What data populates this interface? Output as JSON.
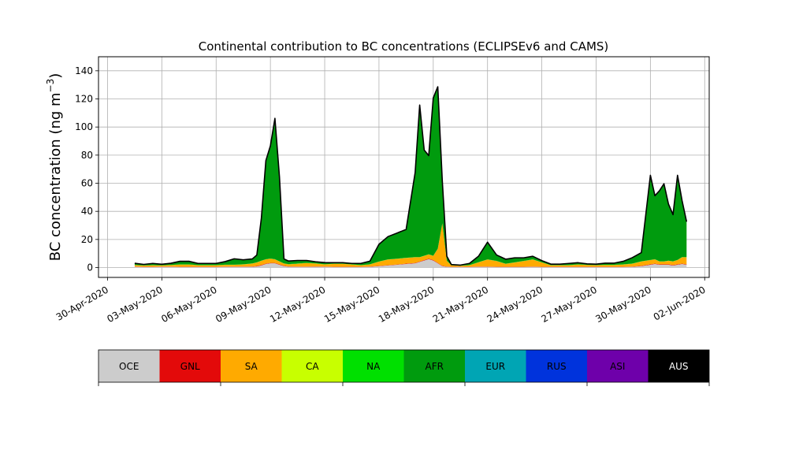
{
  "chart_data": {
    "type": "area",
    "title": "Continental contribution to BC concentrations (ECLIPSEv6 and CAMS)",
    "ylabel": "BC concentration (ng m",
    "ylabel_exp": "−3",
    "ylabel_end": ")",
    "xlabel": "",
    "x_start": "2020-04-30",
    "x_end": "2020-06-02",
    "xlim": [
      "2020-04-29T12:00",
      "2020-06-02T06:00"
    ],
    "ylim": [
      -7,
      150
    ],
    "x_ticks": [
      "30-Apr-2020",
      "03-May-2020",
      "06-May-2020",
      "09-May-2020",
      "12-May-2020",
      "15-May-2020",
      "18-May-2020",
      "21-May-2020",
      "24-May-2020",
      "27-May-2020",
      "30-May-2020",
      "02-Jun-2020"
    ],
    "x_tick_dates": [
      "2020-04-30",
      "2020-05-03",
      "2020-05-06",
      "2020-05-09",
      "2020-05-12",
      "2020-05-15",
      "2020-05-18",
      "2020-05-21",
      "2020-05-24",
      "2020-05-27",
      "2020-05-30",
      "2020-06-02"
    ],
    "y_ticks": [
      0,
      20,
      40,
      60,
      80,
      100,
      120,
      140
    ],
    "grid": true,
    "x": [
      "2020-05-01T12:00",
      "2020-05-02T00:00",
      "2020-05-02T12:00",
      "2020-05-03T00:00",
      "2020-05-03T12:00",
      "2020-05-04T00:00",
      "2020-05-04T12:00",
      "2020-05-05T00:00",
      "2020-05-05T12:00",
      "2020-05-06T00:00",
      "2020-05-06T12:00",
      "2020-05-07T00:00",
      "2020-05-07T12:00",
      "2020-05-08T00:00",
      "2020-05-08T06:00",
      "2020-05-08T12:00",
      "2020-05-08T18:00",
      "2020-05-09T00:00",
      "2020-05-09T06:00",
      "2020-05-09T12:00",
      "2020-05-09T18:00",
      "2020-05-10T00:00",
      "2020-05-10T12:00",
      "2020-05-11T00:00",
      "2020-05-11T12:00",
      "2020-05-12T00:00",
      "2020-05-12T12:00",
      "2020-05-13T00:00",
      "2020-05-13T12:00",
      "2020-05-14T00:00",
      "2020-05-14T12:00",
      "2020-05-15T00:00",
      "2020-05-15T12:00",
      "2020-05-16T00:00",
      "2020-05-16T12:00",
      "2020-05-17T00:00",
      "2020-05-17T06:00",
      "2020-05-17T12:00",
      "2020-05-17T18:00",
      "2020-05-18T00:00",
      "2020-05-18T06:00",
      "2020-05-18T12:00",
      "2020-05-18T18:00",
      "2020-05-19T00:00",
      "2020-05-19T12:00",
      "2020-05-20T00:00",
      "2020-05-20T12:00",
      "2020-05-21T00:00",
      "2020-05-21T12:00",
      "2020-05-22T00:00",
      "2020-05-22T12:00",
      "2020-05-23T00:00",
      "2020-05-23T12:00",
      "2020-05-24T00:00",
      "2020-05-24T12:00",
      "2020-05-25T00:00",
      "2020-05-25T12:00",
      "2020-05-26T00:00",
      "2020-05-26T12:00",
      "2020-05-27T00:00",
      "2020-05-27T12:00",
      "2020-05-28T00:00",
      "2020-05-28T12:00",
      "2020-05-29T00:00",
      "2020-05-29T12:00",
      "2020-05-30T00:00",
      "2020-05-30T06:00",
      "2020-05-30T12:00",
      "2020-05-30T18:00",
      "2020-05-31T00:00",
      "2020-05-31T06:00",
      "2020-05-31T12:00",
      "2020-05-31T18:00",
      "2020-06-01T00:00"
    ],
    "series": [
      {
        "name": "OCE",
        "color": "#cccccc",
        "values": [
          0.5,
          0.4,
          0.4,
          0.5,
          0.5,
          0.4,
          0.4,
          0.4,
          0.4,
          0.4,
          0.5,
          0.5,
          0.5,
          0.6,
          0.8,
          1.5,
          2.5,
          3,
          3,
          2,
          1,
          0.6,
          0.5,
          0.5,
          0.6,
          0.5,
          0.4,
          0.4,
          0.4,
          0.4,
          0.5,
          1,
          1.5,
          2,
          2.5,
          3,
          4,
          5,
          6,
          5,
          3,
          1,
          0.5,
          0.4,
          0.4,
          0.4,
          0.5,
          0.5,
          0.4,
          0.4,
          0.4,
          0.4,
          0.5,
          0.4,
          0.4,
          0.4,
          0.4,
          0.4,
          0.4,
          0.4,
          0.4,
          0.4,
          0.4,
          0.5,
          1,
          2,
          2.5,
          2,
          2,
          2,
          1.5,
          2,
          2.5,
          2
        ]
      },
      {
        "name": "GNL",
        "color": "#e30a0a",
        "values": [
          0.2,
          0.2,
          0.2,
          0.2,
          0.2,
          0.2,
          0.2,
          0.2,
          0.2,
          0.2,
          0.2,
          0.2,
          0.2,
          0.2,
          0.3,
          0.3,
          0.3,
          0.3,
          0.3,
          0.3,
          0.3,
          0.2,
          0.2,
          0.2,
          0.2,
          0.2,
          0.2,
          0.2,
          0.2,
          0.2,
          0.2,
          0.2,
          0.2,
          0.2,
          0.3,
          0.3,
          0.3,
          0.3,
          0.3,
          0.3,
          0.3,
          0.3,
          0.2,
          0.2,
          0.2,
          0.2,
          0.2,
          0.2,
          0.2,
          0.2,
          0.2,
          0.2,
          0.2,
          0.2,
          0.2,
          0.2,
          0.2,
          0.2,
          0.2,
          0.2,
          0.2,
          0.2,
          0.2,
          0.2,
          0.3,
          0.3,
          0.3,
          0.3,
          0.3,
          0.3,
          0.3,
          0.3,
          0.3,
          0.3
        ]
      },
      {
        "name": "SA",
        "color": "#ffaa00",
        "values": [
          1,
          0.8,
          1,
          0.8,
          1,
          1.5,
          1.5,
          1,
          1,
          1,
          1.2,
          1.2,
          1.5,
          2,
          2.5,
          3,
          3,
          3,
          2.5,
          2,
          1.5,
          1.5,
          2,
          2.5,
          2,
          1.5,
          2,
          2,
          1.5,
          1,
          1.5,
          3,
          4,
          4,
          4,
          4,
          3,
          3,
          3,
          3,
          10,
          30,
          4,
          1,
          0.6,
          1,
          3,
          5,
          4,
          2,
          3,
          4,
          5,
          3,
          1,
          1,
          1,
          1.5,
          1.2,
          1,
          1.2,
          1.2,
          1.5,
          2,
          3,
          3,
          3,
          2,
          2,
          2.5,
          2.5,
          3,
          4.5,
          5
        ]
      },
      {
        "name": "CA",
        "color": "#c8ff00",
        "values": [
          0.05,
          0.05,
          0.05,
          0.05,
          0.05,
          0.05,
          0.05,
          0.05,
          0.05,
          0.05,
          0.05,
          0.05,
          0.05,
          0.05,
          0.05,
          0.05,
          0.05,
          0.05,
          0.05,
          0.05,
          0.05,
          0.05,
          0.05,
          0.05,
          0.05,
          0.05,
          0.05,
          0.05,
          0.05,
          0.05,
          0.05,
          0.05,
          0.05,
          0.05,
          0.05,
          0.05,
          0.05,
          0.05,
          0.05,
          0.05,
          0.05,
          0.05,
          0.05,
          0.05,
          0.05,
          0.05,
          0.05,
          0.05,
          0.05,
          0.05,
          0.05,
          0.05,
          0.05,
          0.05,
          0.05,
          0.05,
          0.05,
          0.05,
          0.05,
          0.05,
          0.05,
          0.05,
          0.05,
          0.05,
          0.05,
          0.05,
          0.05,
          0.05,
          0.05,
          0.05,
          0.05,
          0.05,
          0.05,
          0.05
        ]
      },
      {
        "name": "NA",
        "color": "#00e000",
        "values": [
          0.1,
          0.1,
          0.1,
          0.1,
          0.1,
          0.1,
          0.1,
          0.1,
          0.1,
          0.1,
          0.1,
          0.1,
          0.1,
          0.1,
          0.1,
          0.1,
          0.1,
          0.1,
          0.1,
          0.1,
          0.1,
          0.1,
          0.1,
          0.1,
          0.1,
          0.1,
          0.1,
          0.1,
          0.1,
          0.1,
          0.1,
          0.1,
          0.1,
          0.1,
          0.1,
          0.1,
          0.1,
          0.1,
          0.1,
          0.1,
          0.1,
          0.1,
          0.1,
          0.1,
          0.1,
          0.1,
          0.1,
          0.1,
          0.1,
          0.1,
          0.1,
          0.1,
          0.1,
          0.1,
          0.1,
          0.1,
          0.1,
          0.1,
          0.1,
          0.1,
          0.1,
          0.1,
          0.1,
          0.1,
          0.1,
          0.1,
          0.1,
          0.1,
          0.1,
          0.1,
          0.1,
          0.1,
          0.1,
          0.1
        ]
      },
      {
        "name": "AFR",
        "color": "#009b0e",
        "values": [
          1,
          0.5,
          1,
          0.5,
          1,
          2,
          2,
          1,
          1,
          1,
          2,
          4,
          3,
          3,
          5,
          30,
          70,
          80,
          100,
          60,
          3,
          2,
          2,
          1.5,
          1,
          1,
          0.5,
          0.5,
          0.5,
          1,
          2,
          12,
          16,
          18,
          20,
          60,
          108,
          75,
          70,
          112,
          115,
          30,
          3,
          0.2,
          0.2,
          1,
          4,
          12,
          4,
          3,
          3,
          2,
          2,
          1,
          0.5,
          0.5,
          1,
          1,
          0.5,
          0.5,
          1,
          1,
          2,
          4,
          6,
          60,
          45,
          50,
          55,
          40,
          33,
          60,
          40,
          25
        ]
      },
      {
        "name": "EUR",
        "color": "#00a5b4",
        "values": [
          0.05,
          0.05,
          0.05,
          0.05,
          0.05,
          0.05,
          0.05,
          0.05,
          0.05,
          0.05,
          0.05,
          0.05,
          0.05,
          0.05,
          0.05,
          0.05,
          0.05,
          0.05,
          0.05,
          0.05,
          0.05,
          0.05,
          0.05,
          0.05,
          0.05,
          0.05,
          0.05,
          0.05,
          0.05,
          0.05,
          0.05,
          0.05,
          0.05,
          0.05,
          0.05,
          0.05,
          0.05,
          0.05,
          0.05,
          0.05,
          0.05,
          0.05,
          0.05,
          0.05,
          0.05,
          0.05,
          0.05,
          0.05,
          0.05,
          0.05,
          0.05,
          0.05,
          0.05,
          0.05,
          0.05,
          0.05,
          0.05,
          0.05,
          0.05,
          0.05,
          0.05,
          0.05,
          0.05,
          0.05,
          0.05,
          0.05,
          0.05,
          0.05,
          0.05,
          0.05,
          0.05,
          0.05,
          0.05,
          0.05
        ]
      },
      {
        "name": "RUS",
        "color": "#0033dc",
        "values": [
          0.05,
          0.05,
          0.05,
          0.05,
          0.05,
          0.05,
          0.05,
          0.05,
          0.05,
          0.05,
          0.05,
          0.05,
          0.05,
          0.05,
          0.05,
          0.05,
          0.05,
          0.05,
          0.05,
          0.05,
          0.05,
          0.05,
          0.05,
          0.05,
          0.05,
          0.05,
          0.05,
          0.05,
          0.05,
          0.05,
          0.05,
          0.05,
          0.05,
          0.05,
          0.05,
          0.05,
          0.05,
          0.05,
          0.05,
          0.05,
          0.05,
          0.05,
          0.05,
          0.05,
          0.05,
          0.05,
          0.05,
          0.05,
          0.05,
          0.05,
          0.05,
          0.05,
          0.05,
          0.05,
          0.05,
          0.05,
          0.05,
          0.05,
          0.05,
          0.05,
          0.05,
          0.05,
          0.05,
          0.05,
          0.05,
          0.05,
          0.05,
          0.05,
          0.05,
          0.05,
          0.05,
          0.05,
          0.05,
          0.05
        ]
      },
      {
        "name": "ASI",
        "color": "#6e00aa",
        "values": [
          0.05,
          0.05,
          0.05,
          0.05,
          0.05,
          0.05,
          0.05,
          0.05,
          0.05,
          0.05,
          0.05,
          0.05,
          0.05,
          0.05,
          0.05,
          0.05,
          0.05,
          0.05,
          0.05,
          0.05,
          0.05,
          0.05,
          0.05,
          0.05,
          0.05,
          0.05,
          0.05,
          0.05,
          0.05,
          0.05,
          0.05,
          0.05,
          0.05,
          0.05,
          0.05,
          0.05,
          0.05,
          0.05,
          0.05,
          0.05,
          0.05,
          0.05,
          0.05,
          0.05,
          0.05,
          0.05,
          0.05,
          0.05,
          0.05,
          0.05,
          0.05,
          0.05,
          0.05,
          0.05,
          0.05,
          0.05,
          0.05,
          0.05,
          0.05,
          0.05,
          0.05,
          0.05,
          0.05,
          0.05,
          0.05,
          0.05,
          0.05,
          0.05,
          0.05,
          0.05,
          0.05,
          0.05,
          0.05,
          0.05
        ]
      },
      {
        "name": "AUS",
        "color": "#000000",
        "values": [
          0.05,
          0.05,
          0.05,
          0.05,
          0.05,
          0.05,
          0.05,
          0.05,
          0.05,
          0.05,
          0.05,
          0.05,
          0.05,
          0.05,
          0.05,
          0.05,
          0.05,
          0.05,
          0.05,
          0.05,
          0.05,
          0.05,
          0.05,
          0.05,
          0.05,
          0.05,
          0.05,
          0.05,
          0.05,
          0.05,
          0.05,
          0.05,
          0.05,
          0.05,
          0.05,
          0.05,
          0.05,
          0.05,
          0.05,
          0.05,
          0.05,
          0.05,
          0.05,
          0.05,
          0.05,
          0.05,
          0.05,
          0.05,
          0.05,
          0.05,
          0.05,
          0.05,
          0.05,
          0.05,
          0.05,
          0.05,
          0.05,
          0.05,
          0.05,
          0.05,
          0.05,
          0.05,
          0.05,
          0.05,
          0.05,
          0.05,
          0.05,
          0.05,
          0.05,
          0.05,
          0.05,
          0.05,
          0.05,
          0.05
        ]
      }
    ],
    "total_line_color": "#000000",
    "legend_placement": "bottom"
  }
}
